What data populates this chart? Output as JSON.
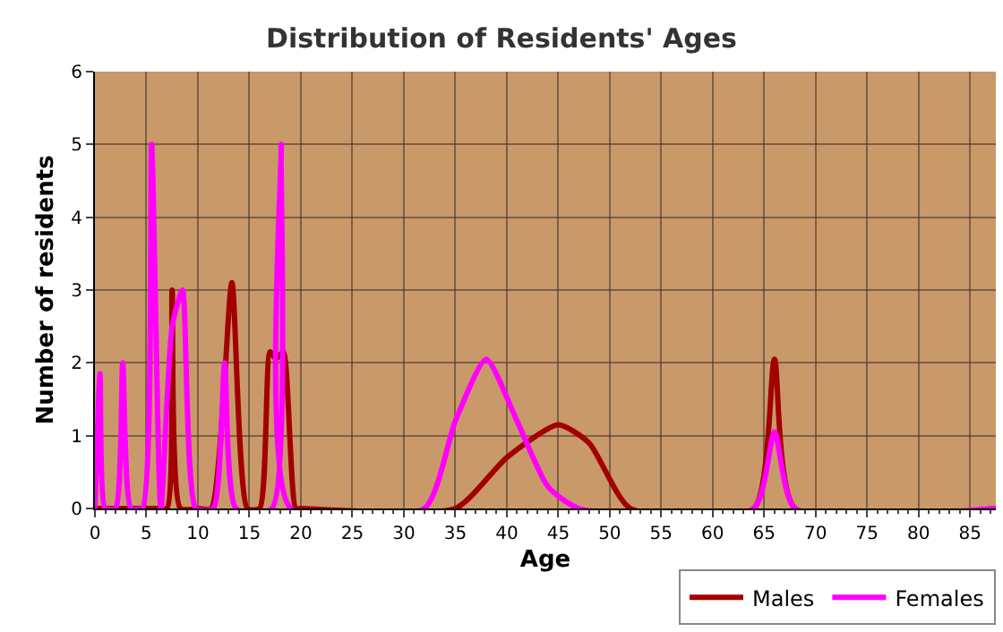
{
  "chart_data": {
    "type": "line",
    "title": "Distribution of Residents' Ages",
    "xlabel": "Age",
    "ylabel": "Number of residents",
    "xlim": [
      0,
      87.5
    ],
    "xticks": [
      0,
      5,
      10,
      15,
      20,
      25,
      30,
      35,
      40,
      45,
      50,
      55,
      60,
      65,
      70,
      75,
      80,
      85
    ],
    "ylim": [
      0,
      6
    ],
    "yticks": [
      0,
      1,
      2,
      3,
      4,
      5,
      6
    ],
    "grid": true,
    "legend": "bottom right",
    "marker": "none",
    "line_style": "solid",
    "series": [
      {
        "name": "Males",
        "color": "#a30000",
        "x": [
          0,
          6,
          7,
          7.5,
          8.3,
          10,
          11.3,
          13.3,
          14.8,
          16,
          17,
          17.6,
          18.3,
          19.5,
          20,
          35,
          40,
          45,
          48,
          52,
          64,
          66,
          68,
          87.5
        ],
        "values": [
          0,
          0,
          0,
          3,
          0,
          0,
          0,
          3.1,
          0,
          0,
          2.15,
          2.05,
          2.15,
          0,
          0,
          0,
          0.7,
          1.15,
          0.9,
          0,
          0,
          2.05,
          0,
          0
        ]
      },
      {
        "name": "Females",
        "color": "#ff00ff",
        "x": [
          0,
          0.5,
          1,
          2,
          2.7,
          3.5,
          4.6,
          5.5,
          6.4,
          7.5,
          8.5,
          9.8,
          11.5,
          12.6,
          13.7,
          17.2,
          18.1,
          19,
          32,
          35,
          38,
          41,
          44,
          47,
          64,
          66,
          68,
          87.5
        ],
        "values": [
          0,
          1.85,
          0,
          0,
          2,
          0,
          0,
          5,
          0,
          2.5,
          3,
          0,
          0,
          2,
          0,
          0,
          5,
          0,
          0,
          1.2,
          2.05,
          1.2,
          0.3,
          0,
          0,
          1.05,
          0,
          0
        ]
      }
    ]
  }
}
